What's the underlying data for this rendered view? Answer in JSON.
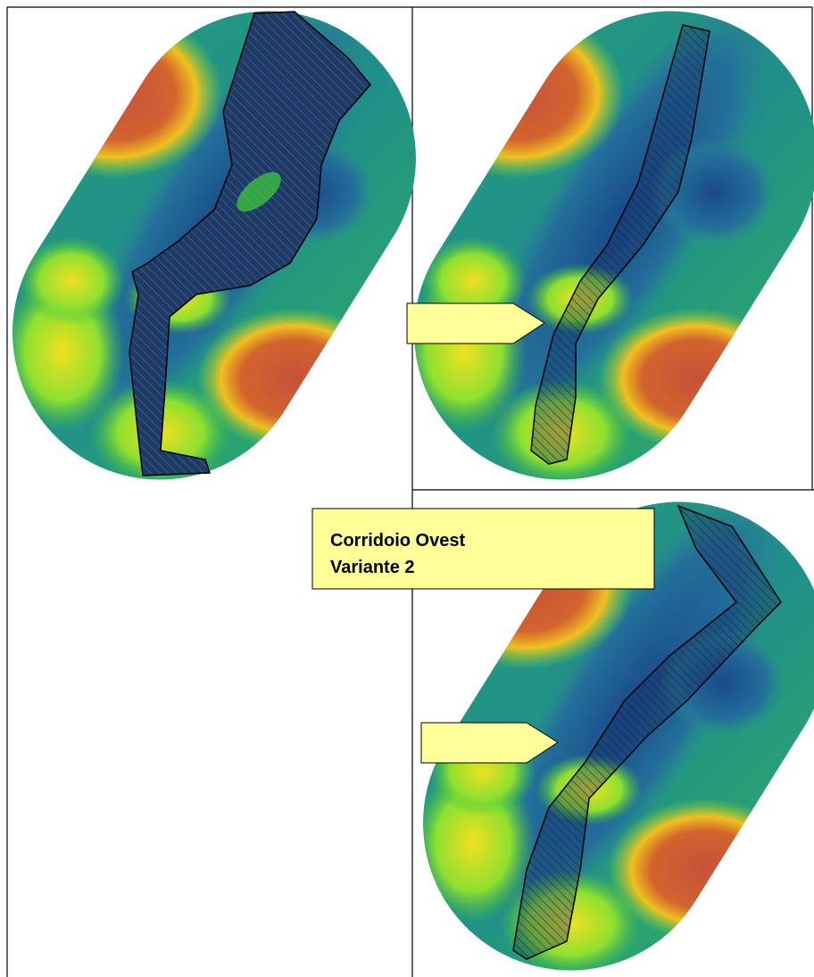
{
  "label": {
    "lines": [
      "Corridoio Ovest",
      "Variante 2"
    ]
  }
}
